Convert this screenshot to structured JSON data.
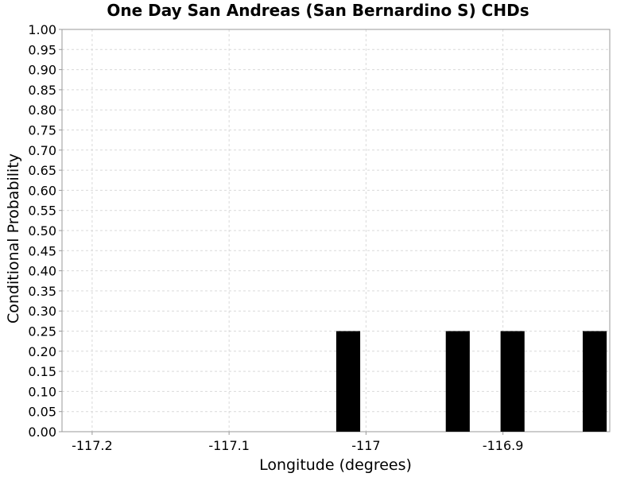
{
  "chart_data": {
    "type": "bar",
    "title": "One Day San Andreas (San Bernardino S) CHDs",
    "xlabel": "Longitude (degrees)",
    "ylabel": "Conditional Probability",
    "xlim": [
      -117.222,
      -116.822
    ],
    "ylim": [
      0,
      1
    ],
    "bar_width": 0.0175,
    "x_ticks": [
      -117.2,
      -117.1,
      -117,
      -116.9
    ],
    "x_tick_labels": [
      "-117.2",
      "-117.1",
      "-117",
      "-116.9"
    ],
    "y_ticks": [
      0,
      0.05,
      0.1,
      0.15,
      0.2,
      0.25,
      0.3,
      0.35,
      0.4,
      0.45,
      0.5,
      0.55,
      0.6,
      0.65,
      0.7,
      0.75,
      0.8,
      0.85,
      0.9,
      0.95,
      1.0
    ],
    "y_tick_labels": [
      "0.00",
      "0.05",
      "0.10",
      "0.15",
      "0.20",
      "0.25",
      "0.30",
      "0.35",
      "0.40",
      "0.45",
      "0.50",
      "0.55",
      "0.60",
      "0.65",
      "0.70",
      "0.75",
      "0.80",
      "0.85",
      "0.90",
      "0.95",
      "1.00"
    ],
    "x": [
      -117.013,
      -116.933,
      -116.893,
      -116.833
    ],
    "values": [
      0.25,
      0.25,
      0.25,
      0.25
    ],
    "bar_color": "#000000",
    "grid": true,
    "legend": "none"
  }
}
